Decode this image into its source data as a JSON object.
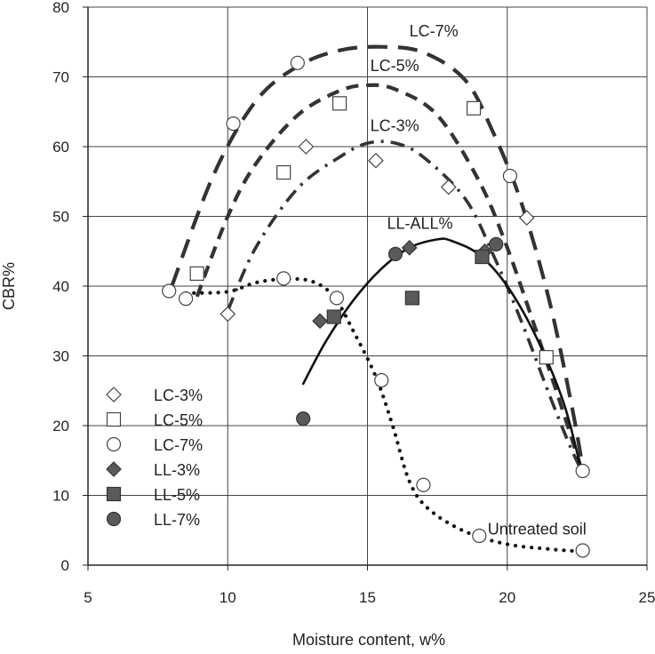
{
  "chart_data": {
    "type": "scatter",
    "xlabel": "Moisture content, w%",
    "ylabel": "CBR%",
    "xlim": [
      5,
      25
    ],
    "ylim": [
      0,
      80
    ],
    "xticks": [
      5,
      10,
      15,
      20,
      25
    ],
    "yticks": [
      0,
      10,
      20,
      30,
      40,
      50,
      60,
      70,
      80
    ],
    "grid": true,
    "legend_position": "bottom-left",
    "series": [
      {
        "name": "LC-3%",
        "marker": "diamond-open",
        "points": [
          [
            10.0,
            36.0
          ],
          [
            12.8,
            60.0
          ],
          [
            15.3,
            58.0
          ],
          [
            17.9,
            54.2
          ],
          [
            20.7,
            49.8
          ]
        ]
      },
      {
        "name": "LC-5%",
        "marker": "square-open",
        "points": [
          [
            8.9,
            41.8
          ],
          [
            12.0,
            56.3
          ],
          [
            14.0,
            66.2
          ],
          [
            18.8,
            65.5
          ],
          [
            21.4,
            29.8
          ]
        ]
      },
      {
        "name": "LC-7%",
        "marker": "circle-open",
        "points": [
          [
            7.9,
            39.3
          ],
          [
            8.5,
            38.2
          ],
          [
            10.2,
            63.3
          ],
          [
            12.0,
            41.1
          ],
          [
            12.5,
            72.0
          ],
          [
            13.9,
            38.3
          ],
          [
            15.5,
            26.5
          ],
          [
            17.0,
            11.5
          ],
          [
            19.0,
            4.2
          ],
          [
            20.1,
            55.8
          ],
          [
            22.7,
            2.1
          ],
          [
            22.7,
            13.5
          ]
        ]
      },
      {
        "name": "LL-3%",
        "marker": "diamond-filled",
        "points": [
          [
            13.3,
            35.0
          ],
          [
            16.5,
            45.5
          ],
          [
            19.2,
            45.0
          ]
        ]
      },
      {
        "name": "LL-5%",
        "marker": "square-filled",
        "points": [
          [
            13.8,
            35.6
          ],
          [
            16.6,
            38.3
          ],
          [
            19.1,
            44.2
          ]
        ]
      },
      {
        "name": "LL-7%",
        "marker": "circle-filled",
        "points": [
          [
            12.7,
            21.0
          ],
          [
            16.0,
            44.6
          ],
          [
            19.6,
            46.0
          ]
        ]
      }
    ],
    "fit_curves": [
      {
        "label": "LC-7%",
        "style": "long-dash",
        "label_at": [
          16.5,
          75.8
        ],
        "points": [
          [
            8.0,
            40.0
          ],
          [
            9.5,
            56.0
          ],
          [
            11.0,
            66.5
          ],
          [
            12.5,
            71.5
          ],
          [
            14.0,
            73.8
          ],
          [
            15.5,
            74.3
          ],
          [
            17.0,
            73.5
          ],
          [
            18.5,
            69.5
          ],
          [
            19.5,
            62.0
          ],
          [
            20.5,
            52.0
          ],
          [
            21.5,
            38.0
          ],
          [
            22.3,
            23.0
          ],
          [
            22.7,
            14.0
          ]
        ]
      },
      {
        "label": "LC-5%",
        "style": "dash",
        "label_at": [
          15.1,
          70.8
        ],
        "points": [
          [
            8.9,
            38.5
          ],
          [
            10.0,
            50.0
          ],
          [
            11.0,
            57.5
          ],
          [
            12.5,
            64.5
          ],
          [
            14.0,
            68.0
          ],
          [
            15.0,
            68.8
          ],
          [
            16.0,
            68.2
          ],
          [
            17.5,
            64.5
          ],
          [
            19.0,
            55.0
          ],
          [
            20.0,
            45.5
          ],
          [
            21.0,
            34.0
          ],
          [
            22.0,
            22.0
          ],
          [
            22.6,
            14.5
          ]
        ]
      },
      {
        "label": "LC-3%",
        "style": "dash-dot",
        "label_at": [
          15.1,
          62.2
        ],
        "points": [
          [
            10.0,
            36.5
          ],
          [
            11.0,
            45.5
          ],
          [
            12.5,
            54.0
          ],
          [
            14.0,
            58.5
          ],
          [
            15.0,
            60.5
          ],
          [
            16.0,
            60.5
          ],
          [
            17.0,
            58.5
          ],
          [
            18.5,
            52.5
          ],
          [
            19.5,
            44.5
          ],
          [
            20.5,
            35.0
          ],
          [
            21.5,
            24.5
          ],
          [
            22.2,
            17.5
          ],
          [
            22.6,
            14.0
          ]
        ]
      },
      {
        "label": "LL-ALL%",
        "style": "solid",
        "label_at": [
          15.7,
          48.2
        ],
        "points": [
          [
            12.7,
            26.0
          ],
          [
            13.5,
            32.0
          ],
          [
            14.5,
            38.0
          ],
          [
            15.5,
            42.5
          ],
          [
            16.5,
            45.5
          ],
          [
            17.5,
            46.7
          ],
          [
            18.0,
            46.5
          ],
          [
            19.0,
            44.5
          ],
          [
            20.0,
            40.0
          ],
          [
            21.0,
            33.0
          ],
          [
            22.0,
            23.5
          ],
          [
            22.6,
            14.5
          ]
        ]
      },
      {
        "label": "Untreated soil",
        "style": "dot",
        "label_at": [
          19.3,
          4.4
        ],
        "points": [
          [
            8.5,
            39.0
          ],
          [
            10.0,
            39.2
          ],
          [
            11.0,
            40.5
          ],
          [
            12.0,
            41.0
          ],
          [
            13.0,
            40.7
          ],
          [
            13.8,
            38.5
          ],
          [
            14.5,
            33.5
          ],
          [
            15.3,
            27.0
          ],
          [
            15.9,
            20.0
          ],
          [
            16.5,
            12.0
          ],
          [
            17.2,
            8.0
          ],
          [
            18.5,
            4.8
          ],
          [
            20.0,
            3.0
          ],
          [
            21.5,
            2.3
          ],
          [
            22.5,
            2.0
          ]
        ]
      }
    ]
  }
}
